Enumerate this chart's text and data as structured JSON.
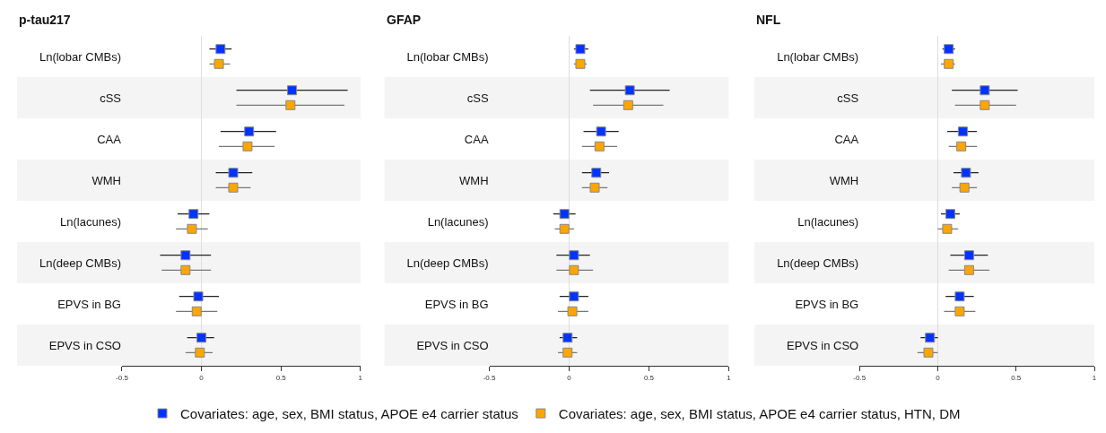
{
  "chart_data": [
    {
      "type": "scatter",
      "title": "p-tau217",
      "orientation": "horizontal",
      "marker": "square",
      "legend": "bottom",
      "grid": false,
      "xlim": [
        -0.5,
        1
      ],
      "xticks": [
        -0.5,
        0,
        0.5,
        1
      ],
      "categories": [
        "Ln(lobar CMBs)",
        "cSS",
        "CAA",
        "WMH",
        "Ln(lacunes)",
        "Ln(deep CMBs)",
        "EPVS in BG",
        "EPVS in CSO"
      ],
      "ref_lines": [
        {
          "axis": "x",
          "value": 0,
          "color": "#dddddd"
        }
      ],
      "series": [
        {
          "name": "Covariates: age, sex, BMI status, APOE e4 carrier status",
          "color": "#0033ff",
          "values": [
            0.12,
            0.57,
            0.3,
            0.2,
            -0.05,
            -0.1,
            -0.02,
            0.0
          ],
          "errors": [
            [
              0.05,
              0.19
            ],
            [
              0.22,
              0.92
            ],
            [
              0.12,
              0.47
            ],
            [
              0.09,
              0.32
            ],
            [
              -0.15,
              0.05
            ],
            [
              -0.26,
              0.06
            ],
            [
              -0.14,
              0.11
            ],
            [
              -0.09,
              0.08
            ]
          ]
        },
        {
          "name": "Covariates: age, sex, BMI status, APOE e4 carrier status, HTN, DM",
          "color": "#ffa500",
          "values": [
            0.11,
            0.56,
            0.29,
            0.2,
            -0.06,
            -0.1,
            -0.03,
            -0.01
          ],
          "errors": [
            [
              0.05,
              0.18
            ],
            [
              0.22,
              0.9
            ],
            [
              0.11,
              0.46
            ],
            [
              0.09,
              0.31
            ],
            [
              -0.16,
              0.04
            ],
            [
              -0.25,
              0.06
            ],
            [
              -0.16,
              0.1
            ],
            [
              -0.1,
              0.07
            ]
          ]
        }
      ]
    },
    {
      "type": "scatter",
      "title": "GFAP",
      "orientation": "horizontal",
      "marker": "square",
      "grid": false,
      "xlim": [
        -0.5,
        1
      ],
      "xticks": [
        -0.5,
        0,
        0.5,
        1
      ],
      "categories": [
        "Ln(lobar CMBs)",
        "cSS",
        "CAA",
        "WMH",
        "Ln(lacunes)",
        "Ln(deep CMBs)",
        "EPVS in BG",
        "EPVS in CSO"
      ],
      "ref_lines": [
        {
          "axis": "x",
          "value": 0,
          "color": "#dddddd"
        }
      ],
      "series": [
        {
          "color": "#0033ff",
          "values": [
            0.07,
            0.38,
            0.2,
            0.17,
            -0.03,
            0.03,
            0.03,
            -0.01
          ],
          "errors": [
            [
              0.03,
              0.12
            ],
            [
              0.13,
              0.63
            ],
            [
              0.09,
              0.31
            ],
            [
              0.08,
              0.25
            ],
            [
              -0.1,
              0.04
            ],
            [
              -0.08,
              0.13
            ],
            [
              -0.06,
              0.12
            ],
            [
              -0.06,
              0.05
            ]
          ]
        },
        {
          "color": "#ffa500",
          "values": [
            0.07,
            0.37,
            0.19,
            0.16,
            -0.03,
            0.03,
            0.02,
            -0.01
          ],
          "errors": [
            [
              0.03,
              0.11
            ],
            [
              0.15,
              0.59
            ],
            [
              0.08,
              0.3
            ],
            [
              0.08,
              0.24
            ],
            [
              -0.09,
              0.03
            ],
            [
              -0.08,
              0.15
            ],
            [
              -0.07,
              0.12
            ],
            [
              -0.07,
              0.05
            ]
          ]
        }
      ]
    },
    {
      "type": "scatter",
      "title": "NFL",
      "orientation": "horizontal",
      "marker": "square",
      "grid": false,
      "xlim": [
        -0.5,
        1
      ],
      "xticks": [
        -0.5,
        0,
        0.5,
        1
      ],
      "categories": [
        "Ln(lobar CMBs)",
        "cSS",
        "CAA",
        "WMH",
        "Ln(lacunes)",
        "Ln(deep CMBs)",
        "EPVS in BG",
        "EPVS in CSO"
      ],
      "ref_lines": [
        {
          "axis": "x",
          "value": 0,
          "color": "#dddddd"
        }
      ],
      "series": [
        {
          "color": "#0033ff",
          "values": [
            0.07,
            0.3,
            0.16,
            0.18,
            0.08,
            0.2,
            0.14,
            -0.05
          ],
          "errors": [
            [
              0.03,
              0.11
            ],
            [
              0.09,
              0.51
            ],
            [
              0.06,
              0.25
            ],
            [
              0.1,
              0.26
            ],
            [
              0.02,
              0.14
            ],
            [
              0.08,
              0.32
            ],
            [
              0.05,
              0.23
            ],
            [
              -0.11,
              0.0
            ]
          ]
        },
        {
          "color": "#ffa500",
          "values": [
            0.07,
            0.3,
            0.15,
            0.17,
            0.06,
            0.2,
            0.14,
            -0.06
          ],
          "errors": [
            [
              0.02,
              0.11
            ],
            [
              0.11,
              0.5
            ],
            [
              0.07,
              0.25
            ],
            [
              0.09,
              0.25
            ],
            [
              0.0,
              0.13
            ],
            [
              0.07,
              0.33
            ],
            [
              0.04,
              0.24
            ],
            [
              -0.13,
              0.0
            ]
          ]
        }
      ]
    }
  ]
}
